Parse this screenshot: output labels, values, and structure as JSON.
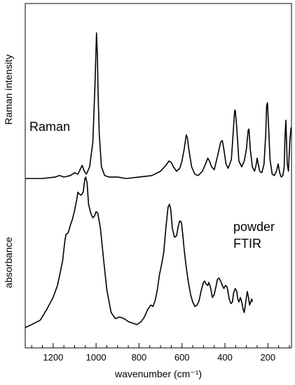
{
  "chart_data": {
    "type": "line",
    "title": "",
    "xlabel": "wavenumber (cm⁻¹)",
    "xlim": [
      1330,
      90
    ],
    "x_reversed": true,
    "x_ticks": [
      1200,
      1000,
      800,
      600,
      400,
      200
    ],
    "x_minor_ticks": [
      1300,
      1250,
      1150,
      1100,
      1050,
      950,
      900,
      850,
      750,
      700,
      650,
      550,
      500,
      450,
      350,
      300,
      250,
      150,
      100
    ],
    "grid": false,
    "legend": "none",
    "y_labels": {
      "upper": "Raman intensity",
      "lower": "absorbance"
    },
    "annotations": {
      "raman": "Raman",
      "ftir_line1": "powder",
      "ftir_line2": "FTIR"
    },
    "series": [
      {
        "name": "Raman",
        "y_unit": "arbitrary (normalized, 0 = baseline, 1 = max)",
        "x": [
          1330,
          1250,
          1190,
          1170,
          1150,
          1120,
          1100,
          1085,
          1065,
          1055,
          1045,
          1030,
          1015,
          1005,
          998,
          994,
          991,
          985,
          975,
          960,
          940,
          900,
          860,
          800,
          740,
          700,
          675,
          660,
          650,
          640,
          625,
          610,
          600,
          590,
          580,
          575,
          568,
          555,
          540,
          525,
          505,
          490,
          480,
          472,
          462,
          450,
          435,
          420,
          412,
          405,
          395,
          385,
          370,
          355,
          352,
          345,
          335,
          322,
          310,
          300,
          292,
          288,
          282,
          272,
          262,
          255,
          250,
          245,
          238,
          228,
          218,
          210,
          206,
          202,
          198,
          190,
          180,
          170,
          160,
          152,
          145,
          138,
          130,
          124,
          120,
          116,
          110,
          104,
          98,
          92
        ],
        "y": [
          0,
          0,
          0.01,
          0.02,
          0.01,
          0.02,
          0.04,
          0.03,
          0.09,
          0.05,
          0.03,
          0.08,
          0.25,
          0.65,
          1.0,
          0.85,
          0.6,
          0.3,
          0.08,
          0.02,
          0.01,
          0.01,
          0.0,
          0.01,
          0.02,
          0.05,
          0.09,
          0.12,
          0.11,
          0.08,
          0.05,
          0.07,
          0.12,
          0.2,
          0.3,
          0.28,
          0.2,
          0.08,
          0.03,
          0.02,
          0.05,
          0.1,
          0.14,
          0.12,
          0.08,
          0.06,
          0.15,
          0.25,
          0.26,
          0.2,
          0.1,
          0.07,
          0.13,
          0.46,
          0.47,
          0.35,
          0.12,
          0.08,
          0.12,
          0.2,
          0.33,
          0.34,
          0.2,
          0.08,
          0.05,
          0.09,
          0.14,
          0.1,
          0.05,
          0.04,
          0.1,
          0.3,
          0.5,
          0.52,
          0.4,
          0.13,
          0.03,
          0.02,
          0.05,
          0.1,
          0.04,
          0.01,
          0.02,
          0.08,
          0.3,
          0.4,
          0.1,
          0.05,
          0.25,
          0.35
        ]
      },
      {
        "name": "powder FTIR",
        "y_unit": "arbitrary (normalized, 0 = baseline, 1 = max)",
        "x": [
          1330,
          1300,
          1260,
          1230,
          1200,
          1180,
          1165,
          1155,
          1150,
          1145,
          1140,
          1130,
          1120,
          1110,
          1100,
          1090,
          1085,
          1080,
          1070,
          1060,
          1052,
          1048,
          1042,
          1035,
          1025,
          1015,
          1008,
          1000,
          992,
          980,
          965,
          950,
          930,
          910,
          890,
          870,
          850,
          830,
          810,
          800,
          790,
          775,
          760,
          745,
          735,
          725,
          715,
          705,
          695,
          685,
          675,
          665,
          658,
          652,
          645,
          635,
          625,
          618,
          610,
          603,
          597,
          590,
          580,
          570,
          560,
          550,
          540,
          530,
          520,
          510,
          500,
          495,
          488,
          480,
          475,
          468,
          458,
          450,
          442,
          435,
          428,
          420,
          412,
          405,
          398,
          390,
          380,
          372,
          365,
          360,
          352,
          345,
          340,
          335,
          328,
          320,
          315,
          310,
          302,
          296,
          290,
          285,
          280,
          275,
          272
        ],
        "y": [
          0,
          0.02,
          0.05,
          0.12,
          0.2,
          0.28,
          0.38,
          0.45,
          0.52,
          0.58,
          0.62,
          0.63,
          0.68,
          0.72,
          0.78,
          0.85,
          0.9,
          0.89,
          0.88,
          0.9,
          0.99,
          1.0,
          0.96,
          0.82,
          0.76,
          0.73,
          0.74,
          0.77,
          0.76,
          0.66,
          0.45,
          0.25,
          0.1,
          0.06,
          0.07,
          0.06,
          0.04,
          0.03,
          0.02,
          0.03,
          0.04,
          0.07,
          0.12,
          0.15,
          0.14,
          0.18,
          0.25,
          0.35,
          0.42,
          0.5,
          0.66,
          0.8,
          0.82,
          0.78,
          0.66,
          0.6,
          0.61,
          0.67,
          0.71,
          0.7,
          0.63,
          0.52,
          0.4,
          0.3,
          0.22,
          0.17,
          0.14,
          0.15,
          0.18,
          0.25,
          0.3,
          0.31,
          0.29,
          0.28,
          0.3,
          0.27,
          0.2,
          0.22,
          0.27,
          0.32,
          0.33,
          0.31,
          0.28,
          0.26,
          0.28,
          0.27,
          0.19,
          0.16,
          0.17,
          0.23,
          0.26,
          0.24,
          0.19,
          0.17,
          0.2,
          0.16,
          0.12,
          0.1,
          0.18,
          0.24,
          0.2,
          0.15,
          0.17,
          0.19,
          0.17
        ]
      }
    ]
  }
}
